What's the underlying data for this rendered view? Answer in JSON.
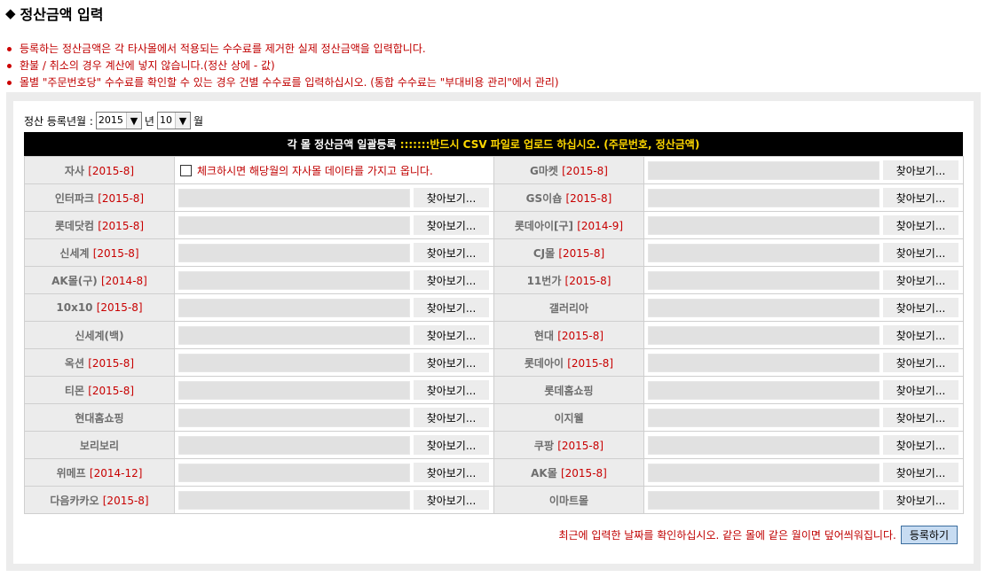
{
  "page": {
    "title": "정산금액 입력",
    "notices": [
      "등록하는 정산금액은 각 타사몰에서 적용되는 수수료를 제거한 실제 정산금액을 입력합니다.",
      "환불 / 취소의 경우 계산에 넣지 않습니다.(정산 상에 - 값)",
      "몰별 \"주문번호당\" 수수료를 확인할 수 있는 경우 건별 수수료를 입력하십시오. (통합 수수료는 \"부대비용 관리\"에서 관리)"
    ]
  },
  "period": {
    "label": "정산 등록년월 :",
    "year": "2015",
    "year_suffix": "년",
    "month": "10",
    "month_suffix": "월"
  },
  "header_bar": {
    "text_white": "각 몰 정산금액 일괄등록 ",
    "text_yellow": ":::::::반드시 CSV 파일로 업로드 하십시오. (주문번호, 정산금액)"
  },
  "browse_label": "찾아보기...",
  "self_checkbox_label": "체크하시면 해당월의 자사몰 데이타를 가지고 옵니다.",
  "rows": [
    {
      "left": {
        "name": "자사",
        "date": "[2015-8]"
      },
      "right": {
        "name": "G마켓",
        "date": "[2015-8]"
      }
    },
    {
      "left": {
        "name": "인터파크",
        "date": "[2015-8]"
      },
      "right": {
        "name": "GS이숍",
        "date": "[2015-8]"
      }
    },
    {
      "left": {
        "name": "롯데닷컴",
        "date": "[2015-8]"
      },
      "right": {
        "name": "롯데아이[구]",
        "date": "[2014-9]"
      }
    },
    {
      "left": {
        "name": "신세계",
        "date": "[2015-8]"
      },
      "right": {
        "name": "CJ몰",
        "date": "[2015-8]"
      }
    },
    {
      "left": {
        "name": "AK몰(구)",
        "date": "[2014-8]"
      },
      "right": {
        "name": "11번가",
        "date": "[2015-8]"
      }
    },
    {
      "left": {
        "name": "10x10",
        "date": "[2015-8]"
      },
      "right": {
        "name": "갤러리아",
        "date": ""
      }
    },
    {
      "left": {
        "name": "신세계(백)",
        "date": ""
      },
      "right": {
        "name": "현대",
        "date": "[2015-8]"
      }
    },
    {
      "left": {
        "name": "옥션",
        "date": "[2015-8]"
      },
      "right": {
        "name": "롯데아이",
        "date": "[2015-8]"
      }
    },
    {
      "left": {
        "name": "티몬",
        "date": "[2015-8]"
      },
      "right": {
        "name": "롯데홈쇼핑",
        "date": ""
      }
    },
    {
      "left": {
        "name": "현대홈쇼핑",
        "date": ""
      },
      "right": {
        "name": "이지웰",
        "date": ""
      }
    },
    {
      "left": {
        "name": "보리보리",
        "date": ""
      },
      "right": {
        "name": "쿠팡",
        "date": "[2015-8]"
      }
    },
    {
      "left": {
        "name": "위메프",
        "date": "[2014-12]"
      },
      "right": {
        "name": "AK몰",
        "date": "[2015-8]"
      }
    },
    {
      "left": {
        "name": "다음카카오",
        "date": "[2015-8]"
      },
      "right": {
        "name": "이마트몰",
        "date": ""
      }
    }
  ],
  "footer": {
    "message": "최근에 입력한 날짜를 확인하십시오. 같은 몰에 같은 월이면 덮어씌워집니다.",
    "submit_label": "등록하기"
  }
}
